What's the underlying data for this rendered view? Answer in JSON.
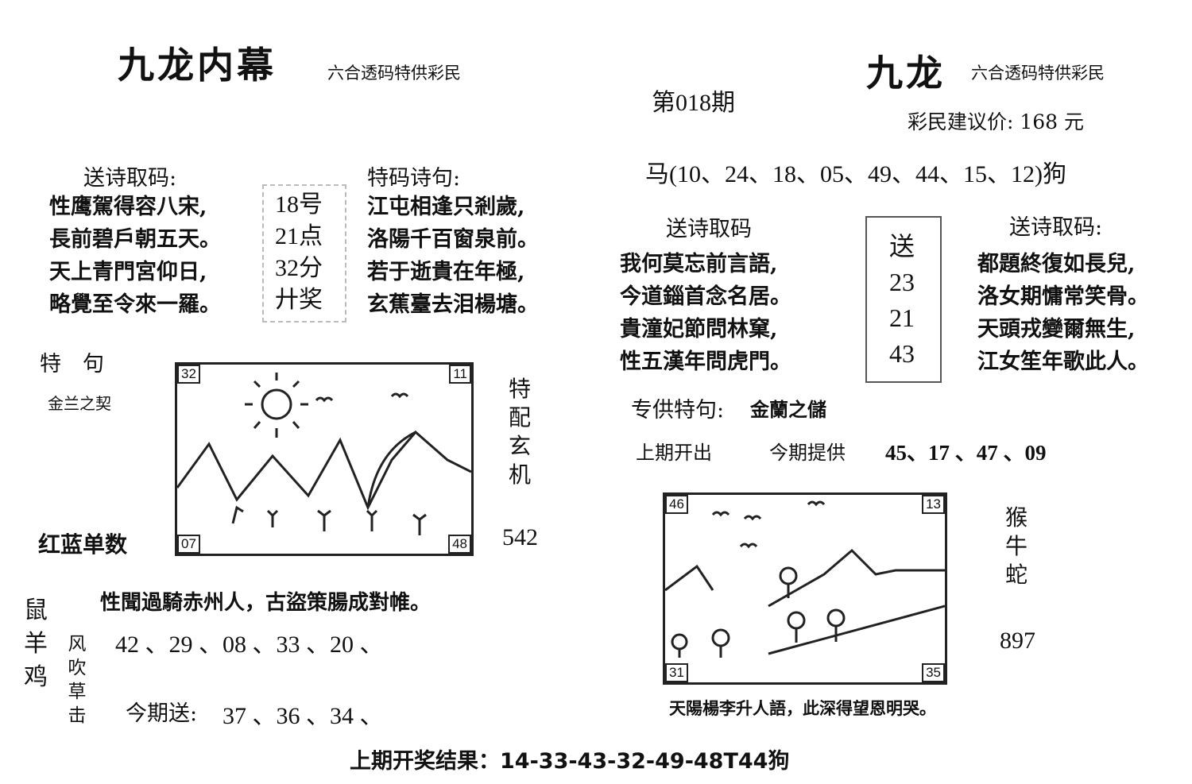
{
  "left": {
    "title": "九龙内幕",
    "subtitle": "六合透码特供彩民",
    "poem_heading": "送诗取码:",
    "poem_lines": [
      "性鹰駕得容八宋,",
      "長前碧戶朝五天。",
      "天上青門宮仰日,",
      "略覺至令來一羅。"
    ],
    "box_lines": [
      "18号",
      "21点",
      "32分",
      "廾奖"
    ],
    "special_heading": "特码诗句:",
    "special_lines": [
      "江屯相逢只剎歲,",
      "洛陽千百窗泉前。",
      "若于逝貴在年極,",
      "玄蕉臺去泪楊塘。"
    ],
    "te_ju": "特　句",
    "te_ju_value": "金兰之契",
    "picture_corners": [
      "32",
      "11",
      "07",
      "48"
    ],
    "side_vertical": "特配玄机",
    "red_blue": "红蓝单数",
    "red_blue_value": "542",
    "animals_vertical": "鼠羊鸡",
    "bottom_poem": "性聞過騎赤州人，古盜策腸成對帷。",
    "wind_vertical": "风吹草击",
    "numbers": "42 、29 、08 、33 、20 、",
    "send_label": "今期送:",
    "send_numbers": "37 、36 、34 、"
  },
  "right": {
    "title": "九龙",
    "subtitle": "六合透码特供彩民",
    "issue": "第018期",
    "price": "彩民建议价:  168 元",
    "horse_line": "马(10、24、18、05、49、44、15、12)狗",
    "poem_heading_left": "送诗取码",
    "poem_left": [
      "我何莫忘前言語,",
      "今道錙首念名居。",
      "貴潼妃節問林窠,",
      "性五漢年問虎門。"
    ],
    "box_lines": [
      "送",
      "23",
      "21",
      "43"
    ],
    "poem_heading_right": "送诗取码:",
    "poem_right": [
      "都題終復如長兒,",
      "洛女期慵常笑骨。",
      "天頭戎變爾無生,",
      "江女笙年歌此人。"
    ],
    "special_label": "专供特句:",
    "special_value": "金蘭之儲",
    "last_label": "上期开出",
    "provide_label": "今期提供",
    "provide_numbers": "45、17 、47 、09",
    "picture_corners": [
      "46",
      "13",
      "31",
      "35"
    ],
    "animals_vertical": "猴牛蛇",
    "number": "897",
    "caption": "天陽楊李升人語，此深得望恩明哭。"
  },
  "footer": "上期开奖结果：14-33-43-32-49-48T44狗"
}
